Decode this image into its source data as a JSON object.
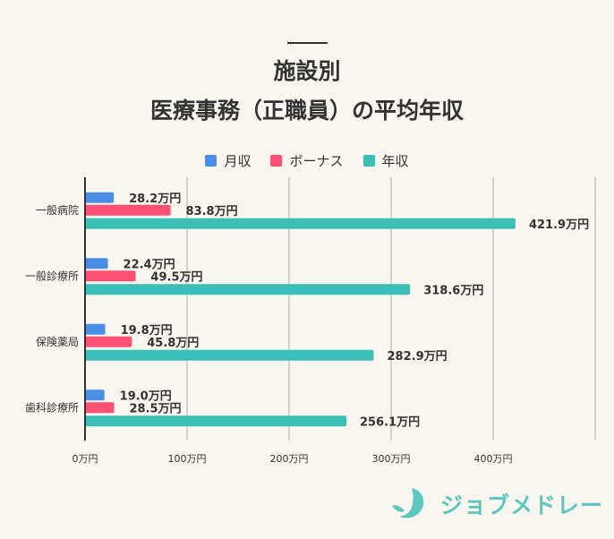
{
  "chart_data": {
    "type": "bar",
    "orientation": "horizontal",
    "title": "施設別\n医療事務（正職員）の平均年収",
    "title_lines": [
      "施設別",
      "医療事務（正職員）の平均年収"
    ],
    "categories": [
      "一般病院",
      "一般診療所",
      "保険薬局",
      "歯科診療所"
    ],
    "series": [
      {
        "name": "月収",
        "color": "#4a8fe6",
        "values": [
          28.2,
          22.4,
          19.8,
          19.0
        ],
        "labels": [
          "28.2万円",
          "22.4万円",
          "19.8万円",
          "19.0万円"
        ]
      },
      {
        "name": "ボーナス",
        "color": "#ff5073",
        "values": [
          83.8,
          49.5,
          45.8,
          28.5
        ],
        "labels": [
          "83.8万円",
          "49.5万円",
          "45.8万円",
          "28.5万円"
        ]
      },
      {
        "name": "年収",
        "color": "#3bbfb7",
        "values": [
          421.9,
          318.6,
          282.9,
          256.1
        ],
        "labels": [
          "421.9万円",
          "318.6万円",
          "282.9万円",
          "256.1万円"
        ]
      }
    ],
    "xlim": [
      0,
      500
    ],
    "xticks": [
      0,
      100,
      200,
      300,
      400
    ],
    "xtick_labels": [
      "0万円",
      "100万円",
      "200万円",
      "300万円",
      "400万円"
    ],
    "grid": true,
    "legend": "top"
  },
  "logo": {
    "text": "ジョブメドレー",
    "color": "#5cc6bf"
  }
}
